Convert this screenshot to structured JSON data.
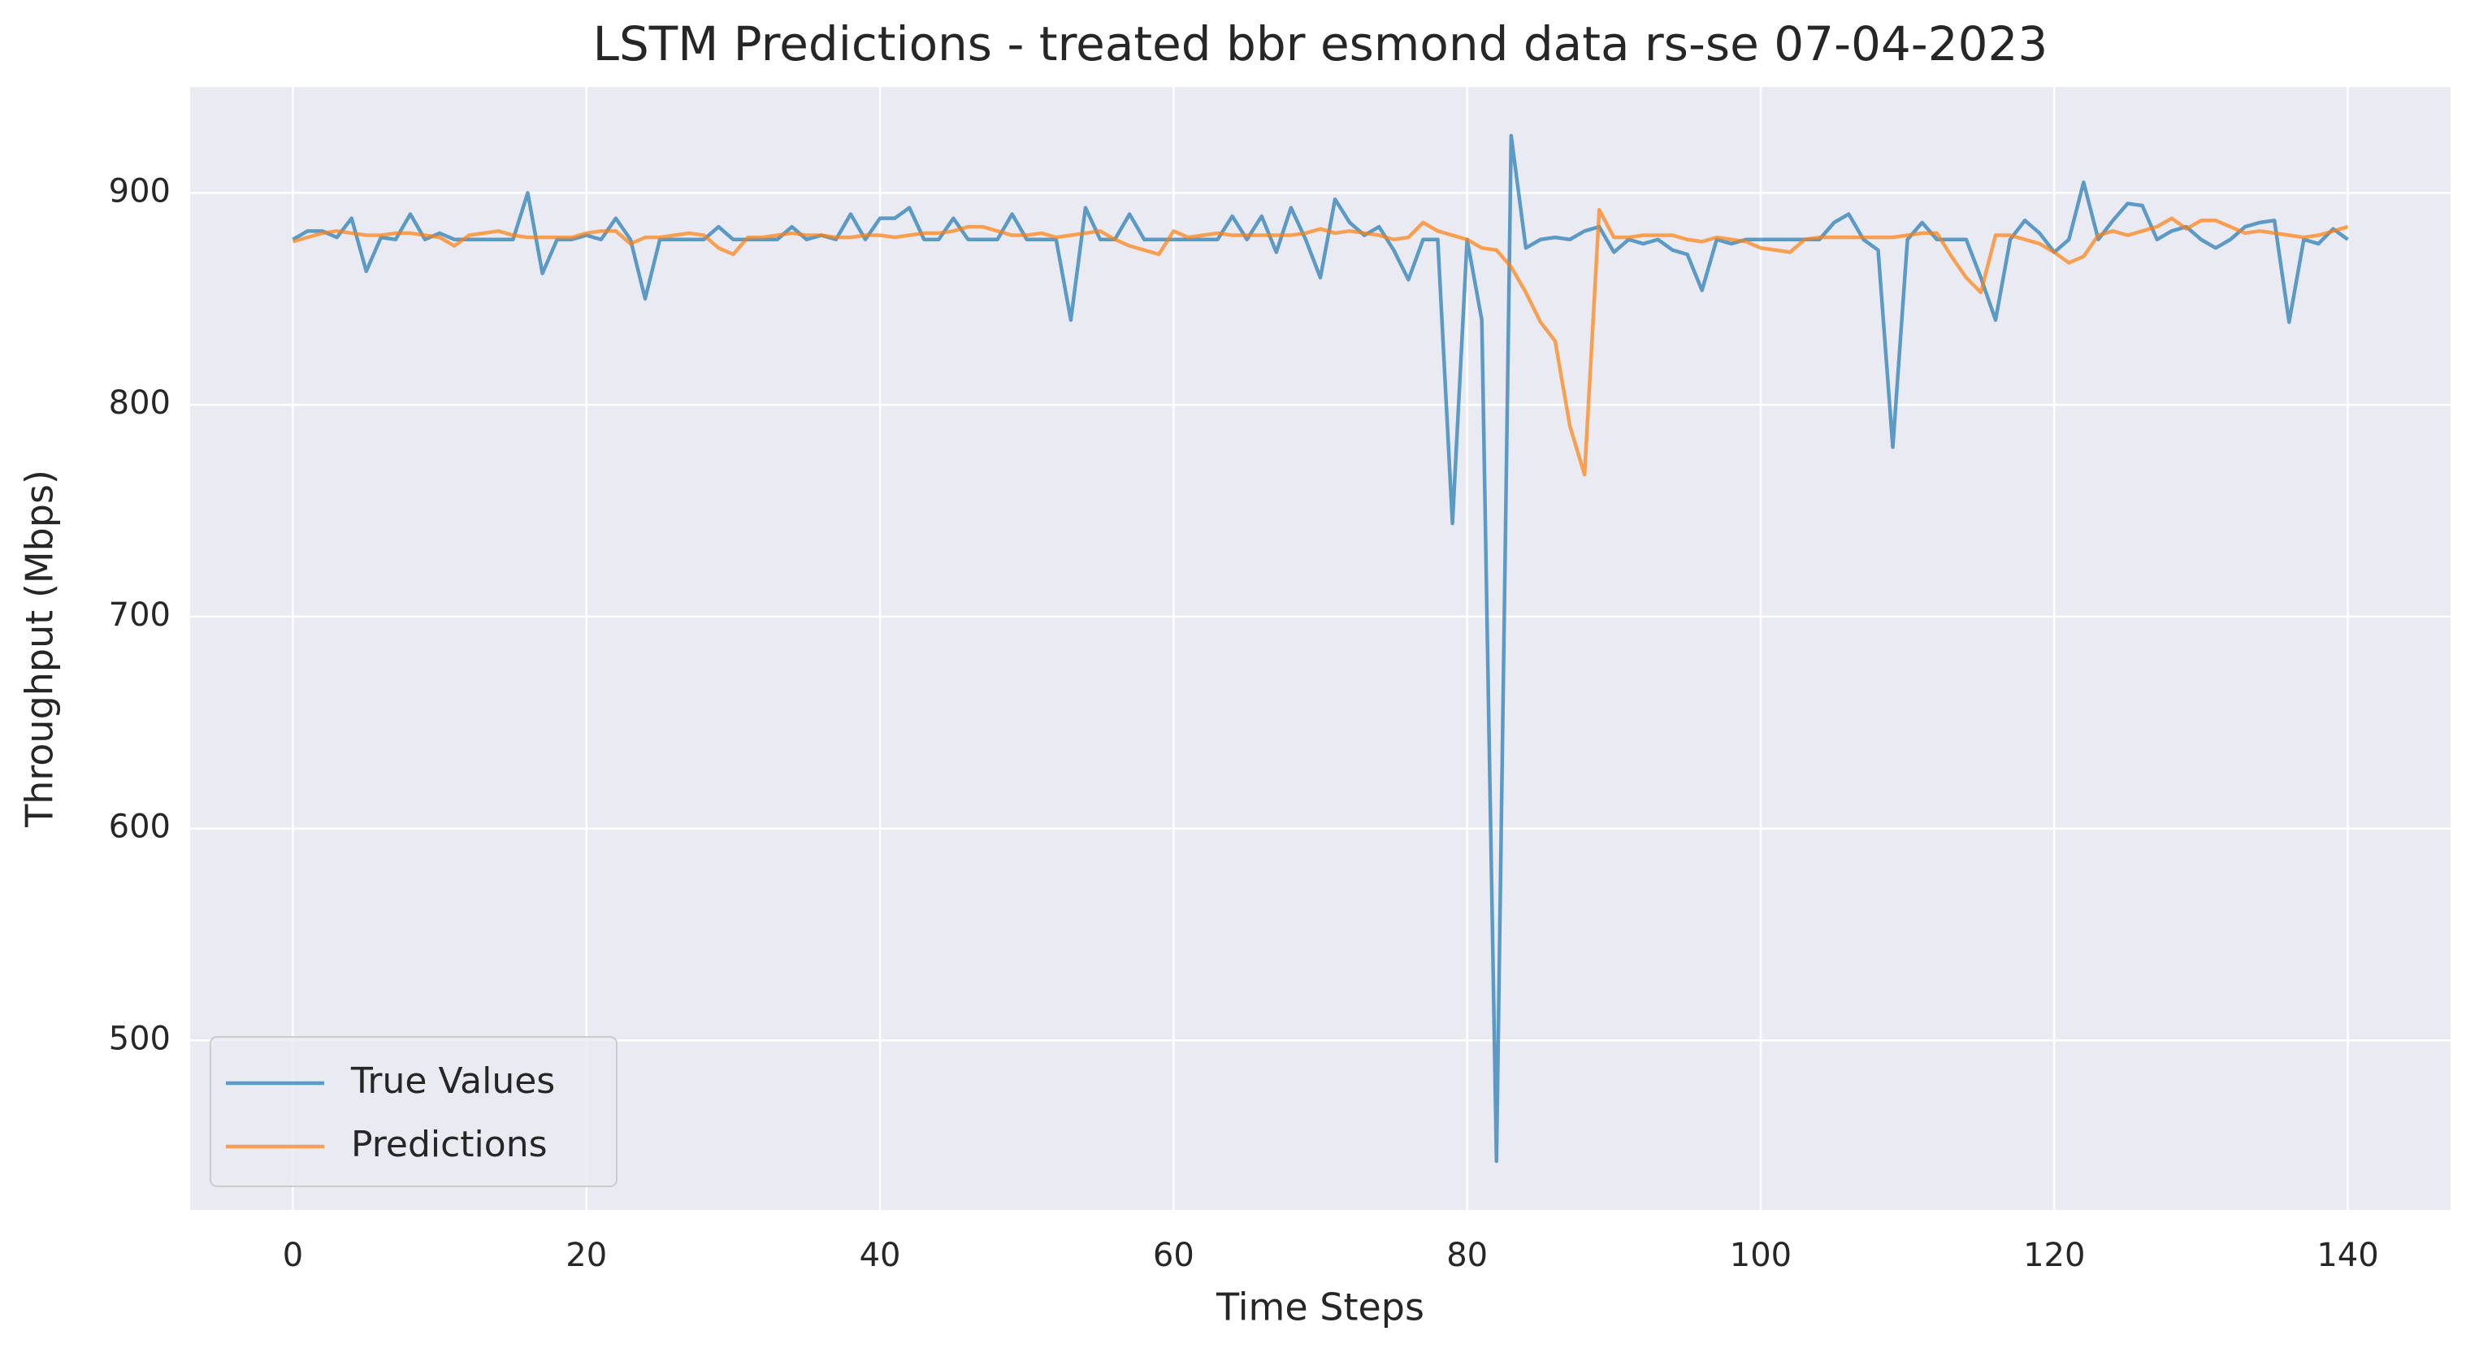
{
  "chart_data": {
    "type": "line",
    "title": "LSTM Predictions - treated bbr esmond data rs-se 07-04-2023",
    "xlabel": "Time Steps",
    "ylabel": "Throughput (Mbps)",
    "x": [
      0,
      1,
      2,
      3,
      4,
      5,
      6,
      7,
      8,
      9,
      10,
      11,
      12,
      13,
      14,
      15,
      16,
      17,
      18,
      19,
      20,
      21,
      22,
      23,
      24,
      25,
      26,
      27,
      28,
      29,
      30,
      31,
      32,
      33,
      34,
      35,
      36,
      37,
      38,
      39,
      40,
      41,
      42,
      43,
      44,
      45,
      46,
      47,
      48,
      49,
      50,
      51,
      52,
      53,
      54,
      55,
      56,
      57,
      58,
      59,
      60,
      61,
      62,
      63,
      64,
      65,
      66,
      67,
      68,
      69,
      70,
      71,
      72,
      73,
      74,
      75,
      76,
      77,
      78,
      79,
      80,
      81,
      82,
      83,
      84,
      85,
      86,
      87,
      88,
      89,
      90,
      91,
      92,
      93,
      94,
      95,
      96,
      97,
      98,
      99,
      100,
      101,
      102,
      103,
      104,
      105,
      106,
      107,
      108,
      109,
      110,
      111,
      112,
      113,
      114,
      115,
      116,
      117,
      118,
      119,
      120,
      121,
      122,
      123,
      124,
      125,
      126,
      127,
      128,
      129,
      130,
      131,
      132,
      133,
      134,
      135,
      136,
      137,
      138,
      139,
      140
    ],
    "series": [
      {
        "name": "True Values",
        "color": "#1f77b4",
        "values": [
          878,
          882,
          882,
          879,
          888,
          863,
          879,
          878,
          890,
          878,
          881,
          878,
          878,
          878,
          878,
          878,
          900,
          862,
          878,
          878,
          880,
          878,
          888,
          878,
          850,
          878,
          878,
          878,
          878,
          884,
          878,
          878,
          878,
          878,
          884,
          878,
          880,
          878,
          890,
          878,
          888,
          888,
          893,
          878,
          878,
          888,
          878,
          878,
          878,
          890,
          878,
          878,
          878,
          840,
          893,
          878,
          878,
          890,
          878,
          878,
          878,
          878,
          878,
          878,
          889,
          878,
          889,
          872,
          893,
          878,
          860,
          897,
          886,
          880,
          884,
          873,
          859,
          878,
          878,
          744,
          878,
          840,
          443,
          927,
          874,
          878,
          879,
          878,
          882,
          884,
          872,
          878,
          876,
          878,
          873,
          871,
          854,
          878,
          876,
          878,
          878,
          878,
          878,
          878,
          878,
          886,
          890,
          878,
          873,
          780,
          878,
          886,
          878,
          878,
          878,
          860,
          840,
          878,
          887,
          881,
          872,
          878,
          905,
          878,
          887,
          895,
          894,
          878,
          882,
          884,
          878,
          874,
          878,
          884,
          886,
          887,
          839,
          878,
          876,
          883,
          878
        ]
      },
      {
        "name": "Predictions",
        "color": "#ff7f0e",
        "values": [
          877,
          879,
          881,
          882,
          881,
          880,
          880,
          881,
          881,
          880,
          879,
          875,
          880,
          881,
          882,
          880,
          879,
          879,
          879,
          879,
          881,
          882,
          882,
          876,
          879,
          879,
          880,
          881,
          880,
          874,
          871,
          879,
          879,
          880,
          881,
          880,
          880,
          879,
          879,
          880,
          880,
          879,
          880,
          881,
          881,
          882,
          884,
          884,
          882,
          880,
          880,
          881,
          879,
          880,
          881,
          882,
          878,
          875,
          873,
          871,
          882,
          879,
          880,
          881,
          880,
          880,
          880,
          880,
          880,
          881,
          883,
          881,
          882,
          881,
          880,
          878,
          879,
          886,
          882,
          880,
          878,
          874,
          873,
          865,
          853,
          839,
          830,
          790,
          767,
          892,
          879,
          879,
          880,
          880,
          880,
          878,
          877,
          879,
          878,
          877,
          874,
          873,
          872,
          878,
          879,
          879,
          879,
          879,
          879,
          879,
          880,
          881,
          881,
          870,
          860,
          853,
          880,
          880,
          878,
          876,
          872,
          867,
          870,
          880,
          882,
          880,
          882,
          884,
          888,
          883,
          887,
          887,
          884,
          881,
          882,
          881,
          880,
          879,
          880,
          882,
          884
        ]
      }
    ],
    "xlim": [
      -7,
      147
    ],
    "ylim": [
      420,
      950
    ],
    "xticks": [
      0,
      20,
      40,
      60,
      80,
      100,
      120,
      140
    ],
    "yticks": [
      500,
      600,
      700,
      800,
      900
    ],
    "grid": true,
    "legend": "lower left"
  }
}
